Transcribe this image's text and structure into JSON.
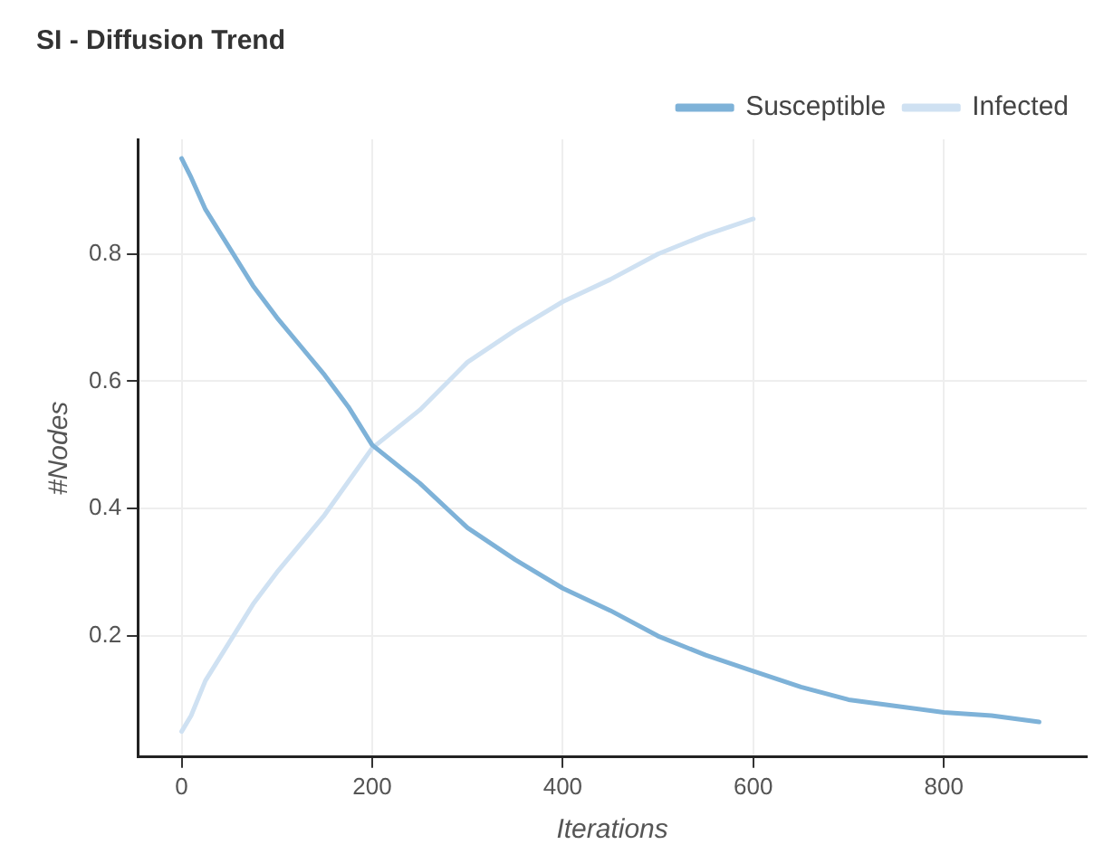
{
  "chart_data": {
    "type": "line",
    "title": "SI - Diffusion Trend",
    "xlabel": "Iterations",
    "ylabel": "#Nodes",
    "xlim": [
      -46,
      950
    ],
    "ylim": [
      0.01,
      0.98
    ],
    "xticks": [
      0,
      200,
      400,
      600,
      800
    ],
    "yticks": [
      0.2,
      0.4,
      0.6,
      0.8
    ],
    "grid": true,
    "legend": "top right",
    "marker": "none",
    "line_style": "solid",
    "series": [
      {
        "name": "Susceptible",
        "color": "#7eb2d8",
        "x": [
          0,
          10,
          25,
          50,
          75,
          100,
          125,
          150,
          175,
          200,
          250,
          300,
          350,
          400,
          450,
          500,
          550,
          600,
          650,
          700,
          750,
          800,
          850,
          900
        ],
        "values": [
          0.95,
          0.92,
          0.87,
          0.81,
          0.75,
          0.7,
          0.655,
          0.61,
          0.56,
          0.5,
          0.44,
          0.37,
          0.32,
          0.275,
          0.24,
          0.2,
          0.17,
          0.145,
          0.12,
          0.1,
          0.09,
          0.08,
          0.075,
          0.065
        ]
      },
      {
        "name": "Infected",
        "color": "#cfe1f2",
        "x": [
          0,
          10,
          25,
          50,
          75,
          100,
          150,
          200,
          250,
          300,
          350,
          400,
          450,
          500,
          550,
          600
        ],
        "values": [
          0.05,
          0.075,
          0.13,
          0.19,
          0.25,
          0.3,
          0.39,
          0.495,
          0.555,
          0.63,
          0.68,
          0.725,
          0.76,
          0.8,
          0.83,
          0.855
        ]
      }
    ]
  }
}
